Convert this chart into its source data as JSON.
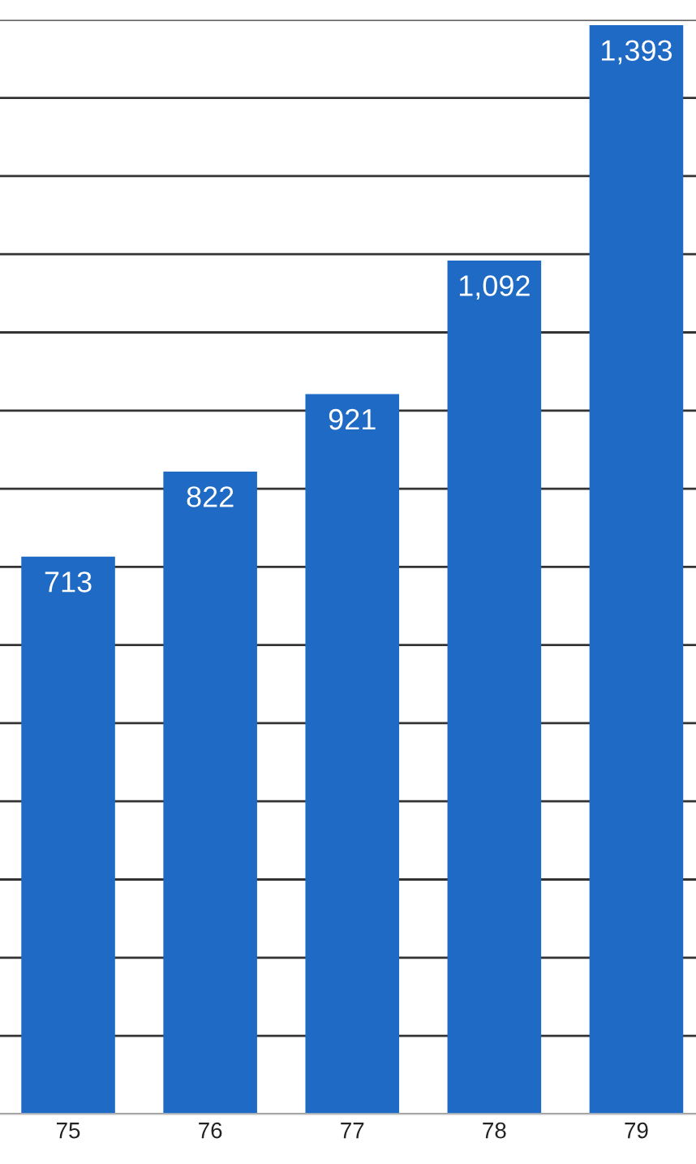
{
  "chart_data": {
    "type": "bar",
    "categories": [
      "75",
      "76",
      "77",
      "78",
      "79"
    ],
    "values": [
      713,
      822,
      921,
      1092,
      1393
    ],
    "value_labels": [
      "713",
      "822",
      "921",
      "1,092",
      "1,393"
    ],
    "color": "#1f6ac4",
    "ylim": [
      0,
      1400
    ],
    "yticks": [
      {
        "value": 0,
        "label": null
      },
      {
        "value": 100,
        "label": null
      },
      {
        "value": 200,
        "label": null
      },
      {
        "value": 300,
        "label": null
      },
      {
        "value": 400,
        "label": null
      },
      {
        "value": 500,
        "label": null
      },
      {
        "value": 600,
        "label": null
      },
      {
        "value": 700,
        "label": null
      },
      {
        "value": 800,
        "label": null
      },
      {
        "value": 900,
        "label": null
      },
      {
        "value": 1000,
        "label": null
      },
      {
        "value": 1100,
        "label": null
      },
      {
        "value": 1200,
        "label": null
      },
      {
        "value": 1300,
        "label": null
      },
      {
        "value": 1400,
        "label": null
      }
    ],
    "grid": "y",
    "tick_labels": "x"
  }
}
